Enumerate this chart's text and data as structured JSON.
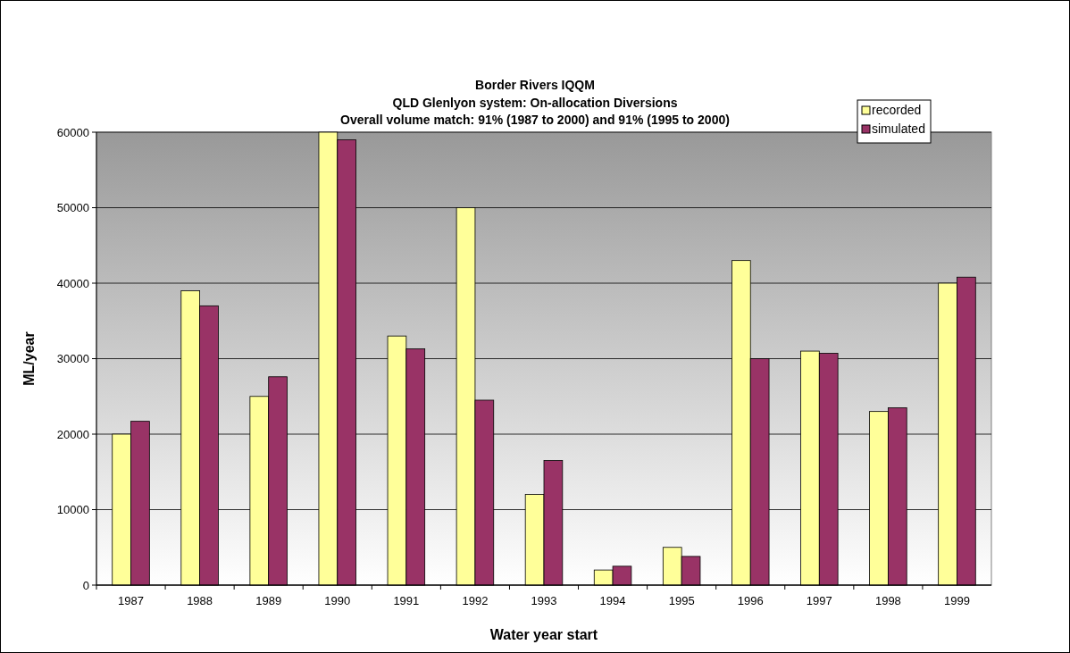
{
  "chart_data": {
    "type": "bar",
    "title": "Border Rivers IQQM",
    "subtitle": "QLD Glenlyon system: On-allocation Diversions\nOverall volume match: 91% (1987 to 2000) and 91% (1995 to 2000)",
    "xlabel": "Water year start",
    "ylabel": "ML/year",
    "categories": [
      "1987",
      "1988",
      "1989",
      "1990",
      "1991",
      "1992",
      "1993",
      "1994",
      "1995",
      "1996",
      "1997",
      "1998",
      "1999"
    ],
    "series": [
      {
        "name": "recorded",
        "color": "#ffff99",
        "values": [
          20000,
          39000,
          25000,
          60000,
          33000,
          50000,
          12000,
          2000,
          5000,
          43000,
          31000,
          23000,
          40000
        ]
      },
      {
        "name": "simulated",
        "color": "#993366",
        "values": [
          21700,
          37000,
          27600,
          59000,
          31300,
          24500,
          16500,
          2500,
          3800,
          30000,
          30700,
          23500,
          40800
        ]
      }
    ],
    "ylim": [
      0,
      60000
    ],
    "yticks": [
      0,
      10000,
      20000,
      30000,
      40000,
      50000,
      60000
    ],
    "grid": "y",
    "legend": "top right"
  }
}
